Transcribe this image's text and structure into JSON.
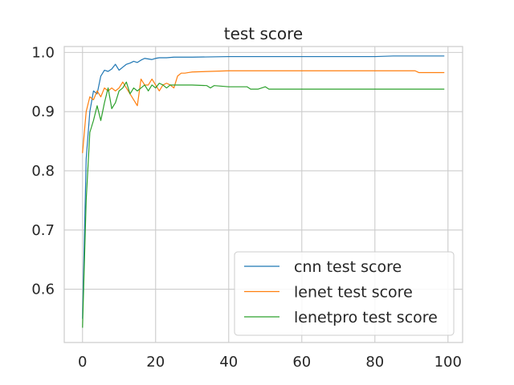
{
  "chart_data": {
    "type": "line",
    "title": "test score",
    "xlabel": "",
    "ylabel": "",
    "xlim": [
      -5,
      104
    ],
    "ylim": [
      0.51,
      1.01
    ],
    "xticks": [
      0,
      20,
      40,
      60,
      80,
      100
    ],
    "yticks": [
      0.6,
      0.7,
      0.8,
      0.9,
      1.0
    ],
    "xtick_labels": [
      "0",
      "20",
      "40",
      "60",
      "80",
      "100"
    ],
    "ytick_labels": [
      "0.6",
      "0.7",
      "0.8",
      "0.9",
      "1.0"
    ],
    "grid": true,
    "legend_position": "lower-right",
    "series": [
      {
        "name": "cnn test score",
        "color": "#1f77b4",
        "points": [
          [
            0,
            0.55
          ],
          [
            1,
            0.82
          ],
          [
            2,
            0.9
          ],
          [
            3,
            0.935
          ],
          [
            4,
            0.93
          ],
          [
            5,
            0.96
          ],
          [
            6,
            0.97
          ],
          [
            7,
            0.968
          ],
          [
            8,
            0.972
          ],
          [
            9,
            0.98
          ],
          [
            10,
            0.97
          ],
          [
            11,
            0.975
          ],
          [
            12,
            0.98
          ],
          [
            13,
            0.982
          ],
          [
            14,
            0.985
          ],
          [
            15,
            0.983
          ],
          [
            16,
            0.987
          ],
          [
            17,
            0.99
          ],
          [
            18,
            0.989
          ],
          [
            19,
            0.988
          ],
          [
            20,
            0.99
          ],
          [
            21,
            0.991
          ],
          [
            22,
            0.991
          ],
          [
            23,
            0.991
          ],
          [
            25,
            0.992
          ],
          [
            30,
            0.992
          ],
          [
            40,
            0.993
          ],
          [
            50,
            0.993
          ],
          [
            60,
            0.993
          ],
          [
            70,
            0.993
          ],
          [
            80,
            0.993
          ],
          [
            85,
            0.994
          ],
          [
            90,
            0.994
          ],
          [
            99,
            0.994
          ]
        ]
      },
      {
        "name": "lenet test score",
        "color": "#ff7f0e",
        "points": [
          [
            0,
            0.83
          ],
          [
            1,
            0.9
          ],
          [
            2,
            0.925
          ],
          [
            3,
            0.92
          ],
          [
            4,
            0.935
          ],
          [
            5,
            0.925
          ],
          [
            6,
            0.94
          ],
          [
            7,
            0.935
          ],
          [
            8,
            0.94
          ],
          [
            9,
            0.935
          ],
          [
            10,
            0.94
          ],
          [
            11,
            0.95
          ],
          [
            12,
            0.94
          ],
          [
            13,
            0.93
          ],
          [
            14,
            0.92
          ],
          [
            15,
            0.91
          ],
          [
            16,
            0.955
          ],
          [
            17,
            0.945
          ],
          [
            18,
            0.945
          ],
          [
            19,
            0.955
          ],
          [
            20,
            0.945
          ],
          [
            21,
            0.935
          ],
          [
            22,
            0.945
          ],
          [
            23,
            0.948
          ],
          [
            24,
            0.945
          ],
          [
            25,
            0.94
          ],
          [
            26,
            0.96
          ],
          [
            27,
            0.965
          ],
          [
            28,
            0.965
          ],
          [
            29,
            0.966
          ],
          [
            30,
            0.967
          ],
          [
            35,
            0.968
          ],
          [
            40,
            0.969
          ],
          [
            50,
            0.969
          ],
          [
            60,
            0.969
          ],
          [
            70,
            0.969
          ],
          [
            80,
            0.969
          ],
          [
            91,
            0.969
          ],
          [
            92,
            0.966
          ],
          [
            99,
            0.966
          ]
        ]
      },
      {
        "name": "lenetpro test score",
        "color": "#2ca02c",
        "points": [
          [
            0,
            0.535
          ],
          [
            1,
            0.75
          ],
          [
            2,
            0.865
          ],
          [
            3,
            0.885
          ],
          [
            4,
            0.91
          ],
          [
            5,
            0.885
          ],
          [
            6,
            0.915
          ],
          [
            7,
            0.94
          ],
          [
            8,
            0.905
          ],
          [
            9,
            0.915
          ],
          [
            10,
            0.935
          ],
          [
            11,
            0.94
          ],
          [
            12,
            0.95
          ],
          [
            13,
            0.93
          ],
          [
            14,
            0.94
          ],
          [
            15,
            0.935
          ],
          [
            16,
            0.94
          ],
          [
            17,
            0.945
          ],
          [
            18,
            0.935
          ],
          [
            19,
            0.945
          ],
          [
            20,
            0.94
          ],
          [
            21,
            0.948
          ],
          [
            22,
            0.945
          ],
          [
            23,
            0.94
          ],
          [
            24,
            0.945
          ],
          [
            25,
            0.945
          ],
          [
            30,
            0.945
          ],
          [
            34,
            0.944
          ],
          [
            35,
            0.94
          ],
          [
            36,
            0.944
          ],
          [
            40,
            0.942
          ],
          [
            45,
            0.942
          ],
          [
            46,
            0.938
          ],
          [
            48,
            0.938
          ],
          [
            50,
            0.942
          ],
          [
            51,
            0.938
          ],
          [
            60,
            0.938
          ],
          [
            70,
            0.938
          ],
          [
            80,
            0.938
          ],
          [
            90,
            0.938
          ],
          [
            99,
            0.938
          ]
        ]
      }
    ]
  }
}
